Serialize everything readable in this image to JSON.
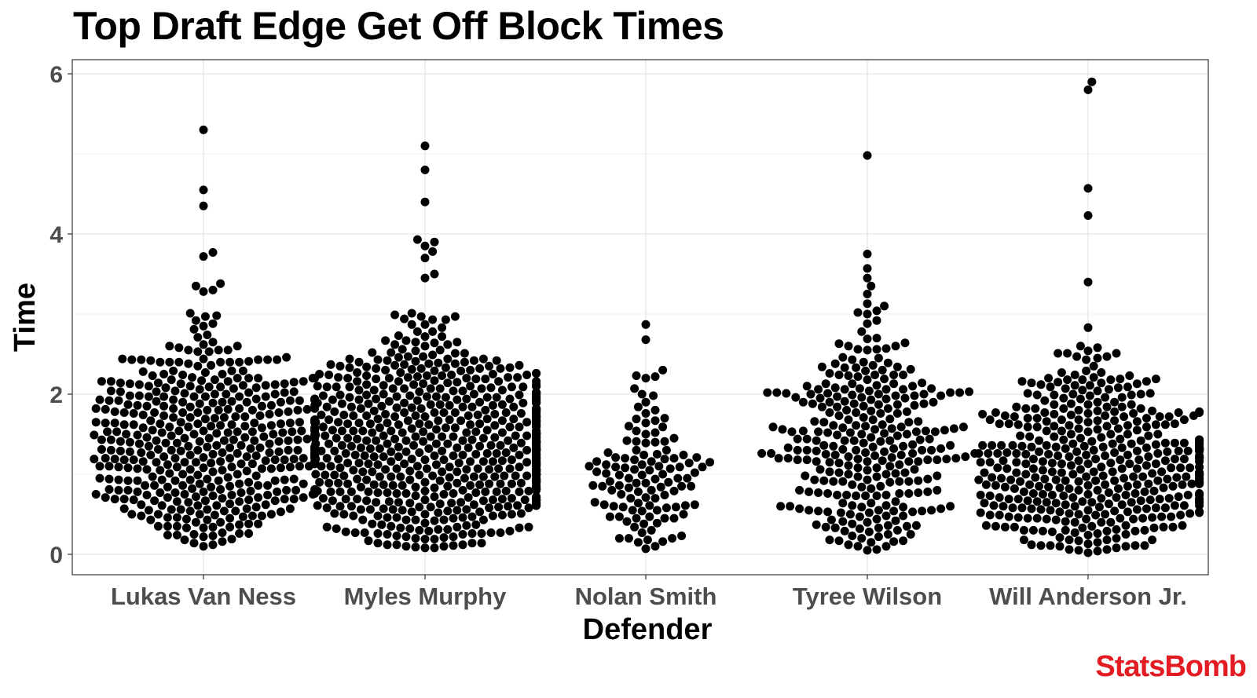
{
  "chart_data": {
    "type": "scatter",
    "title": "Top Draft Edge Get Off Block Times",
    "xlabel": "Defender",
    "ylabel": "Time",
    "categories": [
      "Lukas Van Ness",
      "Myles Murphy",
      "Nolan Smith",
      "Tyree Wilson",
      "Will Anderson Jr."
    ],
    "yticks": [
      0,
      2,
      4,
      6
    ],
    "ylim": [
      -0.25,
      6.2
    ],
    "grid": true,
    "style": "beeswarm",
    "point_color": "#000000",
    "series": [
      {
        "category": "Lukas Van Ness",
        "count": 480,
        "outliers": [
          5.3,
          4.55,
          4.35,
          3.77,
          3.72,
          3.38,
          3.35,
          3.3,
          3.28
        ],
        "values": [
          1.15,
          1.15,
          1.15,
          1.55,
          1.55,
          0.75,
          0.75,
          2.2,
          2.2,
          2.17,
          1.6,
          1.8,
          1.35,
          0.95,
          0.62,
          1.45,
          0.5,
          2.4,
          0.35,
          0.25
        ]
      },
      {
        "category": "Myles Murphy",
        "count": 780,
        "outliers": [
          5.1,
          4.8,
          4.4,
          3.93,
          3.9,
          3.85,
          3.78,
          3.7,
          3.5,
          3.45
        ],
        "values": [
          1.68,
          1.73,
          1.75,
          1.65,
          0.93,
          0.92,
          0.68,
          0.65,
          2.4,
          2.42,
          2.65,
          0.28,
          0.33,
          1.1,
          0.38,
          0.1
        ]
      },
      {
        "category": "Nolan Smith",
        "count": 120,
        "outliers": [
          2.87,
          2.68
        ],
        "values": [
          2.3,
          2.22,
          2.2,
          2.0,
          1.8,
          1.6,
          1.3,
          1.2,
          1.0,
          0.85,
          0.8,
          0.7,
          0.5,
          0.45,
          0.3,
          0.2,
          0.07
        ]
      },
      {
        "category": "Tyree Wilson",
        "count": 300,
        "outliers": [
          4.98,
          3.75,
          3.57,
          3.45,
          3.35,
          3.25
        ],
        "values": [
          1.22,
          1.2,
          0.52,
          0.5,
          0.55,
          1.9,
          2.1,
          1.5,
          0.35,
          0.05,
          0.1,
          3.13,
          3.1
        ]
      },
      {
        "category": "Will Anderson Jr.",
        "count": 470,
        "outliers": [
          5.9,
          5.8,
          4.57,
          4.23,
          3.4
        ],
        "values": [
          0.67,
          0.65,
          1.3,
          1.3,
          0.3,
          0.3,
          0.33,
          0.65,
          1.63,
          2.47,
          0.02,
          0.05,
          0.15,
          2.0,
          1.0,
          1.5
        ]
      }
    ]
  },
  "brand": "StatsBomb"
}
